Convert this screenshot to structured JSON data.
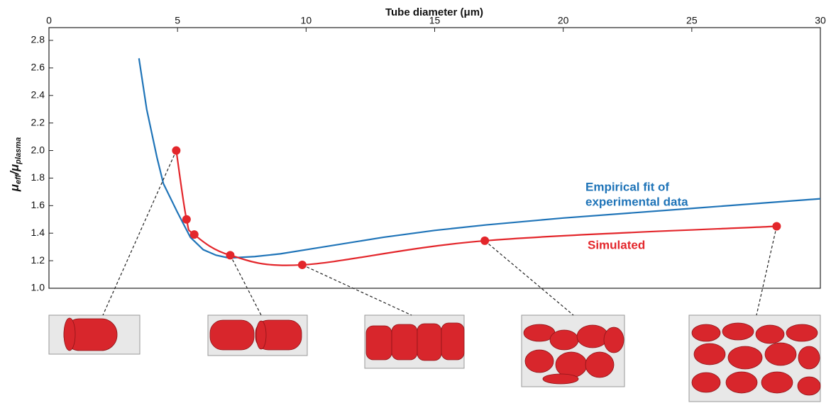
{
  "chart_data": {
    "type": "line",
    "x_label": "Tube diameter (μm)",
    "ylabel": [
      "μ",
      "eff",
      "/μ",
      "plasma"
    ],
    "xlim": [
      0,
      30
    ],
    "xticks": [
      0,
      5,
      10,
      15,
      20,
      25,
      30
    ],
    "ylim": [
      1.0,
      2.8
    ],
    "yticks": [
      {
        "value": 1,
        "label": "1.0"
      },
      1.2,
      1.4,
      1.6,
      1.8,
      {
        "value": 2,
        "label": "2.0"
      },
      2.2,
      2.4,
      2.6,
      2.8
    ],
    "series": [
      {
        "name": "Empirical fit of experimental data",
        "label_lines": [
          "Empirical fit of",
          "experimental data"
        ],
        "color": "#1f74b8",
        "markers": false,
        "x": [
          3.5,
          3.8,
          4.2,
          4.45,
          5.0,
          5.5,
          6.0,
          6.5,
          7.0,
          8.0,
          9.0,
          10.0,
          13.0,
          15.0,
          17.0,
          20.0,
          25.0,
          30.0
        ],
        "values": [
          2.67,
          2.3,
          1.95,
          1.76,
          1.55,
          1.37,
          1.28,
          1.24,
          1.22,
          1.23,
          1.25,
          1.28,
          1.37,
          1.42,
          1.46,
          1.51,
          1.58,
          1.65
        ]
      },
      {
        "name": "Simulated",
        "label_lines": [
          "Simulated"
        ],
        "color": "#e3262b",
        "markers": true,
        "x": [
          4.95,
          5.35,
          5.65,
          7.05,
          9.85,
          16.95,
          28.3
        ],
        "values": [
          2.0,
          1.5,
          1.39,
          1.24,
          1.17,
          1.345,
          1.45
        ]
      }
    ]
  }
}
